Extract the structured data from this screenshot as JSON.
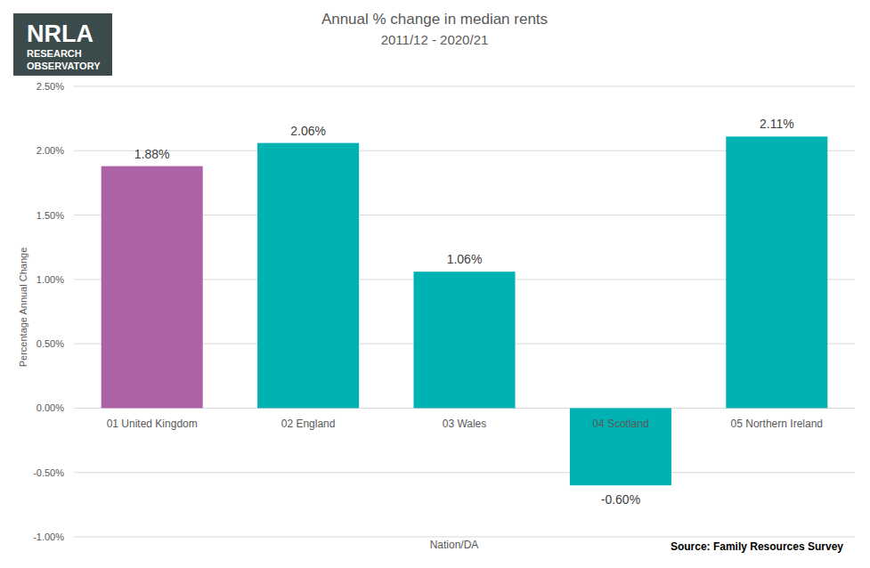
{
  "chart_data": {
    "type": "bar",
    "title": "Annual % change in median rents",
    "subtitle": "2011/12 - 2020/21",
    "x_label": "Nation/DA",
    "y_label": "Percentage Annual Change",
    "source": "Source: Family Resources Survey",
    "logo": [
      "NRLA",
      "RESEARCH",
      "OBSERVATORY"
    ],
    "categories": [
      "01 United Kingdom",
      "02 England",
      "03 Wales",
      "04 Scotland",
      "05 Northern Ireland"
    ],
    "values": [
      1.88,
      2.06,
      1.06,
      -0.6,
      2.11
    ],
    "value_labels": [
      "1.88%",
      "2.06%",
      "1.06%",
      "-0.60%",
      "2.11%"
    ],
    "colors": [
      "#ad62a7",
      "#00b2b2",
      "#00b2b2",
      "#00b2b2",
      "#00b2b2"
    ],
    "ylim": [
      -1,
      2.5
    ],
    "yticks": [
      {
        "value": -1,
        "label": "-1.00%"
      },
      {
        "value": -0.5,
        "label": "-0.50%"
      },
      {
        "value": 0,
        "label": "0.00%"
      },
      {
        "value": 0.5,
        "label": "0.50%"
      },
      {
        "value": 1,
        "label": "1.00%"
      },
      {
        "value": 1.5,
        "label": "1.50%"
      },
      {
        "value": 2,
        "label": "2.00%"
      },
      {
        "value": 2.5,
        "label": "2.50%"
      }
    ],
    "grid": true,
    "data_labels": true
  }
}
